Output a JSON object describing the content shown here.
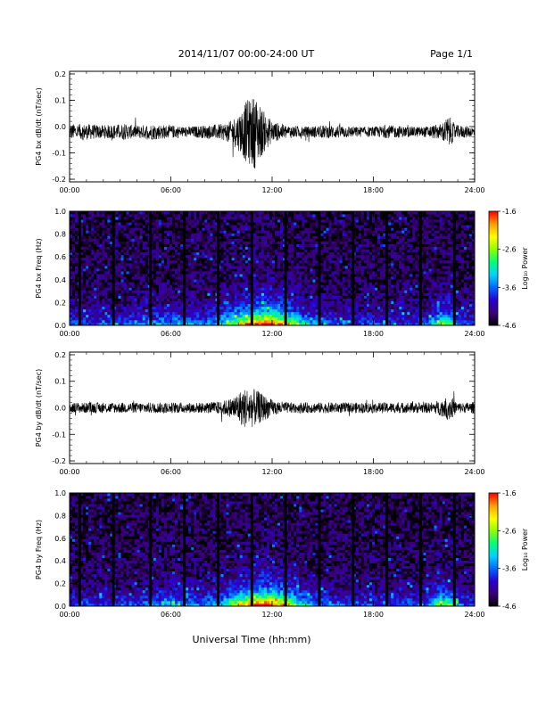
{
  "header": {
    "date_range": "2014/11/07  00:00-24:00 UT",
    "page_label": "Page 1/1"
  },
  "x_axis_title": "Universal Time (hh:mm)",
  "colors": {
    "trace": "#000000",
    "colormap": [
      "#000000",
      "#3c0078",
      "#2800d2",
      "#0064ff",
      "#00d2ff",
      "#00ff78",
      "#8cff00",
      "#ffff00",
      "#ffa000",
      "#ff0000"
    ]
  },
  "chart_data": [
    {
      "type": "line",
      "ylabel": "PG4 bx dB/dt (nT/sec)",
      "xlim": [
        0,
        24
      ],
      "ylim": [
        -0.21,
        0.21
      ],
      "x_ticks": [
        "00:00",
        "06:00",
        "12:00",
        "18:00",
        "24:00"
      ],
      "y_ticks": [
        "-0.2",
        "-0.1",
        "0.0",
        "0.1",
        "0.2"
      ],
      "envelope": {
        "x_hours": [
          0,
          1,
          2,
          3,
          4,
          5,
          6,
          7,
          8,
          9,
          9.5,
          10,
          10.5,
          11,
          11.5,
          12,
          13,
          14,
          15,
          16,
          17,
          18,
          19,
          20,
          21,
          21.5,
          22,
          22.3,
          22.5,
          22.8,
          23,
          24
        ],
        "amplitude": [
          0.03,
          0.03,
          0.025,
          0.03,
          0.025,
          0.03,
          0.025,
          0.02,
          0.025,
          0.03,
          0.04,
          0.07,
          0.12,
          0.14,
          0.08,
          0.04,
          0.025,
          0.02,
          0.025,
          0.025,
          0.02,
          0.02,
          0.025,
          0.02,
          0.02,
          0.025,
          0.03,
          0.05,
          0.06,
          0.03,
          0.025,
          0.02
        ],
        "mean": -0.02
      }
    },
    {
      "type": "heatmap",
      "ylabel": "PG4 bx Freq (Hz)",
      "xlim": [
        0,
        24
      ],
      "ylim": [
        0.0,
        1.0
      ],
      "x_ticks": [
        "00:00",
        "06:00",
        "12:00",
        "18:00",
        "24:00"
      ],
      "y_ticks": [
        "0.0",
        "0.2",
        "0.4",
        "0.6",
        "0.8",
        "1.0"
      ],
      "colorbar": {
        "label": "Log₁₀ Power",
        "ticks": [
          "-4.6",
          "-3.6",
          "-2.6",
          "-1.6"
        ],
        "range": [
          -4.6,
          -1.6
        ]
      },
      "gap_times_hours": [
        0.6,
        2.6,
        4.8,
        6.8,
        8.8,
        10.8,
        12.8,
        14.8,
        16.8,
        18.8,
        20.8,
        22.8
      ]
    },
    {
      "type": "line",
      "ylabel": "PG4 by dB/dt (nT/sec)",
      "xlim": [
        0,
        24
      ],
      "ylim": [
        -0.21,
        0.21
      ],
      "x_ticks": [
        "00:00",
        "06:00",
        "12:00",
        "18:00",
        "24:00"
      ],
      "y_ticks": [
        "-0.2",
        "-0.1",
        "0.0",
        "0.1",
        "0.2"
      ],
      "envelope": {
        "x_hours": [
          0,
          1,
          2,
          3,
          4,
          5,
          6,
          7,
          8,
          9,
          9.5,
          10,
          10.5,
          11,
          11.5,
          12,
          13,
          14,
          15,
          16,
          17,
          18,
          19,
          20,
          21,
          21.5,
          22,
          22.3,
          22.5,
          22.8,
          23,
          24
        ],
        "amplitude": [
          0.02,
          0.02,
          0.02,
          0.02,
          0.02,
          0.02,
          0.02,
          0.02,
          0.02,
          0.025,
          0.035,
          0.06,
          0.08,
          0.07,
          0.05,
          0.03,
          0.02,
          0.02,
          0.02,
          0.02,
          0.02,
          0.02,
          0.02,
          0.02,
          0.02,
          0.02,
          0.03,
          0.04,
          0.05,
          0.03,
          0.02,
          0.02
        ],
        "mean": 0.0
      }
    },
    {
      "type": "heatmap",
      "ylabel": "PG4 by Freq (Hz)",
      "xlim": [
        0,
        24
      ],
      "ylim": [
        0.0,
        1.0
      ],
      "x_ticks": [
        "00:00",
        "06:00",
        "12:00",
        "18:00",
        "24:00"
      ],
      "y_ticks": [
        "0.0",
        "0.2",
        "0.4",
        "0.6",
        "0.8",
        "1.0"
      ],
      "colorbar": {
        "label": "Log₁₀ Power",
        "ticks": [
          "-4.6",
          "-3.6",
          "-2.6",
          "-1.6"
        ],
        "range": [
          -4.6,
          -1.6
        ]
      },
      "gap_times_hours": [
        0.6,
        2.6,
        4.8,
        6.8,
        8.8,
        10.8,
        12.8,
        14.8,
        16.8,
        18.8,
        20.8,
        22.8
      ]
    }
  ]
}
